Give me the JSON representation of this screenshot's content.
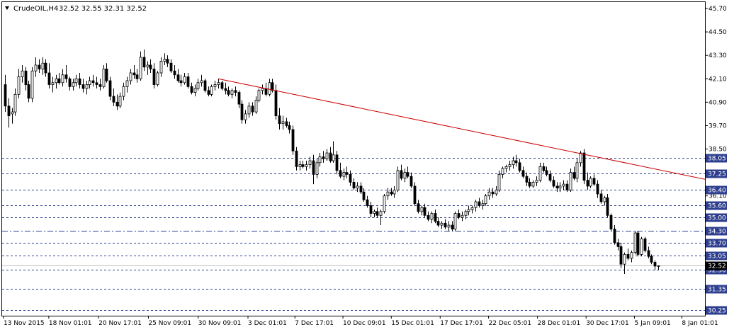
{
  "header": {
    "symbol_label": "CrudeOIL,H4",
    "ohlc": "32.52 32.55 32.31 32.52"
  },
  "colors": {
    "background": "#ffffff",
    "frame": "#000000",
    "candle": "#000000",
    "bull_body": "#ffffff",
    "bear_body": "#000000",
    "level_line": "#2f3f8f",
    "level_badge": "#2f3f8f",
    "price_badge": "#000000",
    "trendline": "#cc0000",
    "current_price_line": "#c0c0c0"
  },
  "icons": {
    "window_menu": "triangle-down-icon"
  },
  "chart_data": {
    "type": "candlestick",
    "title": "CrudeOIL,H4",
    "timeframe": "H4",
    "ohlc_current": {
      "open": 32.52,
      "high": 32.55,
      "low": 32.31,
      "close": 32.52
    },
    "ylim": [
      30.25,
      45.7
    ],
    "y_ticks": [
      "45.70",
      "44.50",
      "43.30",
      "42.10",
      "40.90",
      "39.70",
      "38.50",
      "36.10",
      "35.00",
      "33.70",
      "31.35",
      "30.25"
    ],
    "x_ticks": [
      "13 Nov 2015",
      "18 Nov 01:01",
      "20 Nov 17:01",
      "25 Nov 09:01",
      "30 Nov 09:01",
      "3 Dec 01:01",
      "7 Dec 17:01",
      "10 Dec 09:01",
      "15 Dec 01:01",
      "17 Dec 17:01",
      "22 Dec 05:01",
      "28 Dec 01:01",
      "30 Dec 17:01",
      "5 Jan 09:01",
      "8 Jan 01:01"
    ],
    "horizontal_levels": [
      {
        "price": 38.05,
        "label": "38.05",
        "style": "dashed"
      },
      {
        "price": 37.25,
        "label": "37.25",
        "style": "dashed"
      },
      {
        "price": 36.4,
        "label": "36.40",
        "style": "dashed"
      },
      {
        "price": 35.6,
        "label": "35.60",
        "style": "dashed"
      },
      {
        "price": 35.0,
        "label": "35.00",
        "style": "dashed"
      },
      {
        "price": 34.3,
        "label": "34.30",
        "style": "dashdot"
      },
      {
        "price": 33.7,
        "label": "33.70",
        "style": "dashed"
      },
      {
        "price": 33.05,
        "label": "33.05",
        "style": "dashed"
      },
      {
        "price": 32.3,
        "label": "32.30",
        "style": "dashed"
      },
      {
        "price": 31.35,
        "label": "31.35",
        "style": "dashed"
      },
      {
        "price": 30.25,
        "label": "30.25",
        "style": "dashed"
      }
    ],
    "current_price": {
      "price": 32.52,
      "label": "32.52"
    },
    "trendline": {
      "start": {
        "price": 42.1
      },
      "end": {
        "price": 36.95
      }
    },
    "candles": [
      [
        41.8,
        42.3,
        40.4,
        40.7
      ],
      [
        40.7,
        41.1,
        39.6,
        40.2
      ],
      [
        40.3,
        40.6,
        39.8,
        40.4
      ],
      [
        40.4,
        41.6,
        40.2,
        41.3
      ],
      [
        41.3,
        42.6,
        41.1,
        42.2
      ],
      [
        42.2,
        42.8,
        41.9,
        42.5
      ],
      [
        42.5,
        42.7,
        41.5,
        41.8
      ],
      [
        41.8,
        42.0,
        40.9,
        41.1
      ],
      [
        41.1,
        42.7,
        40.9,
        42.5
      ],
      [
        42.5,
        43.2,
        42.2,
        42.8
      ],
      [
        42.8,
        43.1,
        42.4,
        42.6
      ],
      [
        42.6,
        43.2,
        42.3,
        42.9
      ],
      [
        42.9,
        43.1,
        42.2,
        42.4
      ],
      [
        42.4,
        42.9,
        41.6,
        41.8
      ],
      [
        41.8,
        42.2,
        41.4,
        41.9
      ],
      [
        41.9,
        42.3,
        41.6,
        42.1
      ],
      [
        42.1,
        42.4,
        41.8,
        41.9
      ],
      [
        41.9,
        42.6,
        41.7,
        42.3
      ],
      [
        42.3,
        42.8,
        41.9,
        42.1
      ],
      [
        42.1,
        42.2,
        41.5,
        41.7
      ],
      [
        41.7,
        42.1,
        41.5,
        41.9
      ],
      [
        41.9,
        42.3,
        41.7,
        42.1
      ],
      [
        42.1,
        42.4,
        41.6,
        41.8
      ],
      [
        41.8,
        42.1,
        41.4,
        41.6
      ],
      [
        41.6,
        42.0,
        41.3,
        41.8
      ],
      [
        41.8,
        42.2,
        41.6,
        42.0
      ],
      [
        42.0,
        42.3,
        41.7,
        41.9
      ],
      [
        41.9,
        42.2,
        41.6,
        41.8
      ],
      [
        41.8,
        42.1,
        41.5,
        41.7
      ],
      [
        41.7,
        42.8,
        41.6,
        42.6
      ],
      [
        42.6,
        42.9,
        41.9,
        42.0
      ],
      [
        42.0,
        42.2,
        41.0,
        41.2
      ],
      [
        41.2,
        41.6,
        40.7,
        40.9
      ],
      [
        40.9,
        41.3,
        40.5,
        40.7
      ],
      [
        40.7,
        41.4,
        40.6,
        41.2
      ],
      [
        41.2,
        41.9,
        41.0,
        41.7
      ],
      [
        41.7,
        42.2,
        41.4,
        42.0
      ],
      [
        42.0,
        42.6,
        41.8,
        42.4
      ],
      [
        42.4,
        42.8,
        42.1,
        42.3
      ],
      [
        42.3,
        42.6,
        41.9,
        42.1
      ],
      [
        42.1,
        43.5,
        42.0,
        43.2
      ],
      [
        43.2,
        43.6,
        42.5,
        42.7
      ],
      [
        42.7,
        43.0,
        42.3,
        42.8
      ],
      [
        42.8,
        43.1,
        42.4,
        42.6
      ],
      [
        42.6,
        42.9,
        41.6,
        41.8
      ],
      [
        41.8,
        42.5,
        41.7,
        42.4
      ],
      [
        42.4,
        43.2,
        42.2,
        43.0
      ],
      [
        43.0,
        43.4,
        42.8,
        43.1
      ],
      [
        43.1,
        43.3,
        42.7,
        42.9
      ],
      [
        42.9,
        43.1,
        42.4,
        42.5
      ],
      [
        42.5,
        42.8,
        42.1,
        42.3
      ],
      [
        42.3,
        42.6,
        41.9,
        42.0
      ],
      [
        42.0,
        42.3,
        41.7,
        41.9
      ],
      [
        41.9,
        42.4,
        41.8,
        42.2
      ],
      [
        42.2,
        42.4,
        41.6,
        41.7
      ],
      [
        41.7,
        41.9,
        41.3,
        41.4
      ],
      [
        41.4,
        41.8,
        41.2,
        41.6
      ],
      [
        41.6,
        42.1,
        41.5,
        41.9
      ],
      [
        41.9,
        42.3,
        41.7,
        42.0
      ],
      [
        42.0,
        42.1,
        41.4,
        41.5
      ],
      [
        41.5,
        41.7,
        41.2,
        41.3
      ],
      [
        41.3,
        41.8,
        41.2,
        41.7
      ],
      [
        41.7,
        42.0,
        41.5,
        41.8
      ],
      [
        41.8,
        42.1,
        41.6,
        41.9
      ],
      [
        41.9,
        42.0,
        41.5,
        41.6
      ],
      [
        41.6,
        41.9,
        41.3,
        41.5
      ],
      [
        41.5,
        41.7,
        41.2,
        41.3
      ],
      [
        41.3,
        41.6,
        41.1,
        41.5
      ],
      [
        41.5,
        41.7,
        41.2,
        41.4
      ],
      [
        41.4,
        41.5,
        40.6,
        40.8
      ],
      [
        40.8,
        41.0,
        39.8,
        40.0
      ],
      [
        40.0,
        40.5,
        39.8,
        40.3
      ],
      [
        40.3,
        40.9,
        40.1,
        40.7
      ],
      [
        40.7,
        40.9,
        40.2,
        40.4
      ],
      [
        40.4,
        41.2,
        40.3,
        41.0
      ],
      [
        41.0,
        41.6,
        40.9,
        41.5
      ],
      [
        41.5,
        41.8,
        41.3,
        41.6
      ],
      [
        41.6,
        41.9,
        41.2,
        41.3
      ],
      [
        41.3,
        42.1,
        41.2,
        41.9
      ],
      [
        41.9,
        42.1,
        41.4,
        41.5
      ],
      [
        41.5,
        41.8,
        40.0,
        40.2
      ],
      [
        40.2,
        40.6,
        39.5,
        39.8
      ],
      [
        39.8,
        40.2,
        39.5,
        39.9
      ],
      [
        39.9,
        40.1,
        39.6,
        39.7
      ],
      [
        39.7,
        39.9,
        39.3,
        39.5
      ],
      [
        39.5,
        39.7,
        38.2,
        38.4
      ],
      [
        38.4,
        38.6,
        37.4,
        37.6
      ],
      [
        37.6,
        37.9,
        37.4,
        37.7
      ],
      [
        37.7,
        37.9,
        37.5,
        37.6
      ],
      [
        37.6,
        37.9,
        37.4,
        37.7
      ],
      [
        37.7,
        38.1,
        37.5,
        37.9
      ],
      [
        37.9,
        38.2,
        36.7,
        37.2
      ],
      [
        37.2,
        38.0,
        37.0,
        37.8
      ],
      [
        37.8,
        38.3,
        37.6,
        38.1
      ],
      [
        38.1,
        38.4,
        37.8,
        38.0
      ],
      [
        38.0,
        38.5,
        37.9,
        38.3
      ],
      [
        38.3,
        38.6,
        37.8,
        37.9
      ],
      [
        37.9,
        38.9,
        37.8,
        38.2
      ],
      [
        38.2,
        38.4,
        37.2,
        37.4
      ],
      [
        37.4,
        37.8,
        37.0,
        37.1
      ],
      [
        37.1,
        37.5,
        36.9,
        37.3
      ],
      [
        37.3,
        37.6,
        37.0,
        37.2
      ],
      [
        37.2,
        37.4,
        36.6,
        36.8
      ],
      [
        36.8,
        37.0,
        36.4,
        36.5
      ],
      [
        36.5,
        36.8,
        36.3,
        36.6
      ],
      [
        36.6,
        36.8,
        36.2,
        36.3
      ],
      [
        36.3,
        36.5,
        35.8,
        35.9
      ],
      [
        35.9,
        36.1,
        35.5,
        35.6
      ],
      [
        35.6,
        35.8,
        35.0,
        35.2
      ],
      [
        35.2,
        35.4,
        35.0,
        35.3
      ],
      [
        35.3,
        35.5,
        35.0,
        35.1
      ],
      [
        35.1,
        35.4,
        34.6,
        35.3
      ],
      [
        35.3,
        36.2,
        35.2,
        36.1
      ],
      [
        36.1,
        36.5,
        35.9,
        36.3
      ],
      [
        36.3,
        36.5,
        36.1,
        36.2
      ],
      [
        36.2,
        36.6,
        36.0,
        36.4
      ],
      [
        36.4,
        37.6,
        36.3,
        37.4
      ],
      [
        37.4,
        37.7,
        36.9,
        37.0
      ],
      [
        37.0,
        37.5,
        36.8,
        37.3
      ],
      [
        37.3,
        37.6,
        37.0,
        37.1
      ],
      [
        37.1,
        37.3,
        36.5,
        36.6
      ],
      [
        36.6,
        36.8,
        35.6,
        35.7
      ],
      [
        35.7,
        35.9,
        35.2,
        35.3
      ],
      [
        35.3,
        35.6,
        35.1,
        35.5
      ],
      [
        35.5,
        35.7,
        35.0,
        35.1
      ],
      [
        35.1,
        35.3,
        34.8,
        34.9
      ],
      [
        34.9,
        35.3,
        34.7,
        35.2
      ],
      [
        35.2,
        35.4,
        34.7,
        34.8
      ],
      [
        34.8,
        35.0,
        34.5,
        34.6
      ],
      [
        34.6,
        34.8,
        34.4,
        34.7
      ],
      [
        34.7,
        34.9,
        34.4,
        34.5
      ],
      [
        34.5,
        34.8,
        34.3,
        34.6
      ],
      [
        34.6,
        34.8,
        34.3,
        34.4
      ],
      [
        34.4,
        35.3,
        34.3,
        35.2
      ],
      [
        35.2,
        35.4,
        34.9,
        35.0
      ],
      [
        35.0,
        35.3,
        34.8,
        35.1
      ],
      [
        35.1,
        35.4,
        34.9,
        35.3
      ],
      [
        35.3,
        35.6,
        35.1,
        35.4
      ],
      [
        35.4,
        35.6,
        35.2,
        35.5
      ],
      [
        35.5,
        35.9,
        35.3,
        35.8
      ],
      [
        35.8,
        36.0,
        35.5,
        35.6
      ],
      [
        35.6,
        35.9,
        35.4,
        35.7
      ],
      [
        35.7,
        36.2,
        35.6,
        36.1
      ],
      [
        36.1,
        36.5,
        35.9,
        36.3
      ],
      [
        36.3,
        36.5,
        36.0,
        36.2
      ],
      [
        36.2,
        36.6,
        36.1,
        36.4
      ],
      [
        36.4,
        37.4,
        36.3,
        37.2
      ],
      [
        37.2,
        37.6,
        37.0,
        37.5
      ],
      [
        37.5,
        37.7,
        37.3,
        37.6
      ],
      [
        37.6,
        37.9,
        37.4,
        37.7
      ],
      [
        37.7,
        38.1,
        37.5,
        37.9
      ],
      [
        37.9,
        38.2,
        37.6,
        37.8
      ],
      [
        37.8,
        38.0,
        37.3,
        37.4
      ],
      [
        37.4,
        37.6,
        37.0,
        37.1
      ],
      [
        37.1,
        37.3,
        36.6,
        36.8
      ],
      [
        36.8,
        37.0,
        36.5,
        36.6
      ],
      [
        36.6,
        36.9,
        36.5,
        36.8
      ],
      [
        36.8,
        37.1,
        36.6,
        36.9
      ],
      [
        36.9,
        37.8,
        36.8,
        37.6
      ],
      [
        37.6,
        37.8,
        37.3,
        37.4
      ],
      [
        37.4,
        37.6,
        37.1,
        37.2
      ],
      [
        37.2,
        37.4,
        36.8,
        36.9
      ],
      [
        36.9,
        37.1,
        36.5,
        36.6
      ],
      [
        36.6,
        36.8,
        36.3,
        36.5
      ],
      [
        36.5,
        36.8,
        36.3,
        36.6
      ],
      [
        36.6,
        36.9,
        36.4,
        36.7
      ],
      [
        36.7,
        36.9,
        36.3,
        36.4
      ],
      [
        36.4,
        37.5,
        36.3,
        37.3
      ],
      [
        37.3,
        37.6,
        36.9,
        37.0
      ],
      [
        37.0,
        38.0,
        36.8,
        37.8
      ],
      [
        37.8,
        38.4,
        37.6,
        38.3
      ],
      [
        38.3,
        38.5,
        36.7,
        36.9
      ],
      [
        36.9,
        37.3,
        36.4,
        36.6
      ],
      [
        36.6,
        37.1,
        36.5,
        37.0
      ],
      [
        37.0,
        37.2,
        36.6,
        36.7
      ],
      [
        36.7,
        36.9,
        36.0,
        36.2
      ],
      [
        36.2,
        36.4,
        35.7,
        35.8
      ],
      [
        35.8,
        36.1,
        35.6,
        36.0
      ],
      [
        36.0,
        36.2,
        35.0,
        35.1
      ],
      [
        35.1,
        35.2,
        34.3,
        34.4
      ],
      [
        34.4,
        34.6,
        33.6,
        33.7
      ],
      [
        33.7,
        33.9,
        33.3,
        33.5
      ],
      [
        33.5,
        33.7,
        32.4,
        32.6
      ],
      [
        32.6,
        33.2,
        32.1,
        33.1
      ],
      [
        33.1,
        33.4,
        32.8,
        32.9
      ],
      [
        32.9,
        33.3,
        32.7,
        33.2
      ],
      [
        33.2,
        34.3,
        33.1,
        34.2
      ],
      [
        34.2,
        34.3,
        33.0,
        33.1
      ],
      [
        33.1,
        34.0,
        33.0,
        33.9
      ],
      [
        33.9,
        34.0,
        33.2,
        33.3
      ],
      [
        33.3,
        33.5,
        32.9,
        33.0
      ],
      [
        33.0,
        33.1,
        32.6,
        32.7
      ],
      [
        32.7,
        32.8,
        32.3,
        32.5
      ],
      [
        32.52,
        32.55,
        32.31,
        32.52
      ]
    ]
  }
}
